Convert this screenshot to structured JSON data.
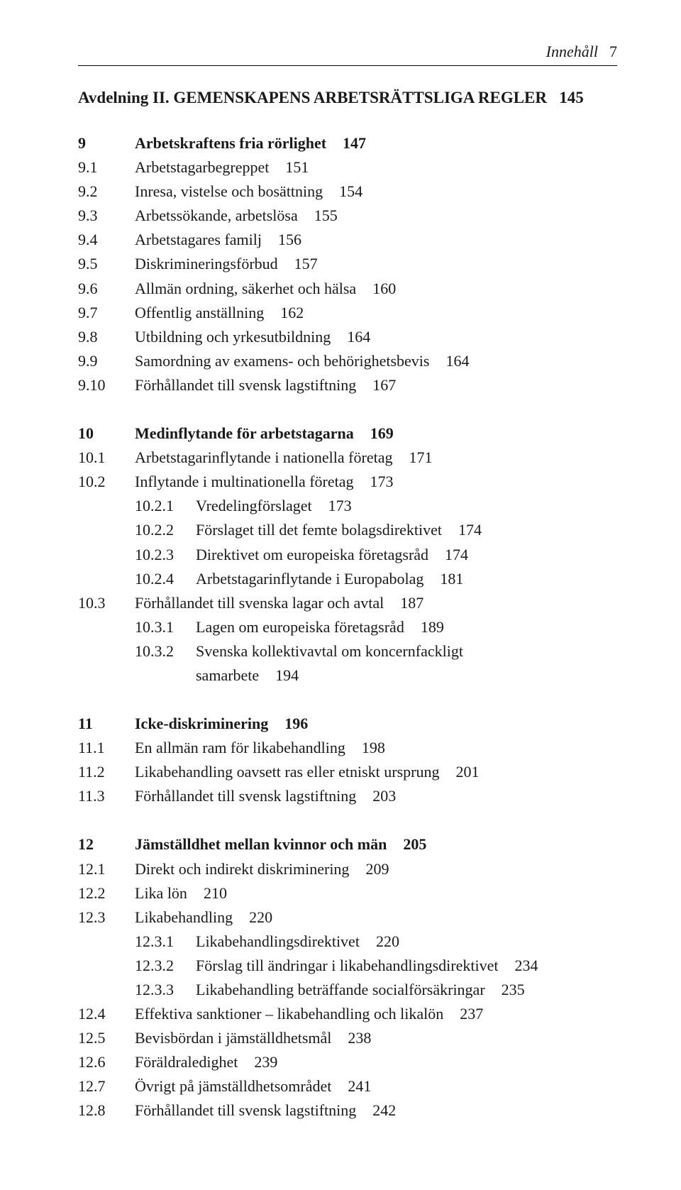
{
  "header": {
    "label": "Innehåll",
    "page": "7"
  },
  "avdelning": {
    "prefix": "Avdelning II.",
    "title": "GEMENSKAPENS ARBETSRÄTTSLIGA REGLER",
    "page": "145"
  },
  "sections": [
    {
      "head": {
        "num": "9",
        "title": "Arbetskraftens fria rörlighet",
        "page": "147"
      },
      "items": [
        {
          "num": "9.1",
          "title": "Arbetstagarbegreppet",
          "page": "151"
        },
        {
          "num": "9.2",
          "title": "Inresa, vistelse och bosättning",
          "page": "154"
        },
        {
          "num": "9.3",
          "title": "Arbetssökande, arbetslösa",
          "page": "155"
        },
        {
          "num": "9.4",
          "title": "Arbetstagares familj",
          "page": "156"
        },
        {
          "num": "9.5",
          "title": "Diskrimineringsförbud",
          "page": "157"
        },
        {
          "num": "9.6",
          "title": "Allmän ordning, säkerhet och hälsa",
          "page": "160"
        },
        {
          "num": "9.7",
          "title": "Offentlig anställning",
          "page": "162"
        },
        {
          "num": "9.8",
          "title": "Utbildning och yrkesutbildning",
          "page": "164"
        },
        {
          "num": "9.9",
          "title": "Samordning av examens- och behörighetsbevis",
          "page": "164"
        },
        {
          "num": "9.10",
          "title": "Förhållandet till svensk lagstiftning",
          "page": "167"
        }
      ]
    },
    {
      "head": {
        "num": "10",
        "title": "Medinflytande för arbetstagarna",
        "page": "169"
      },
      "items": [
        {
          "num": "10.1",
          "title": "Arbetstagarinflytande i nationella företag",
          "page": "171"
        },
        {
          "num": "10.2",
          "title": "Inflytande i multinationella företag",
          "page": "173",
          "subs": [
            {
              "num": "10.2.1",
              "title": "Vredelingförslaget",
              "page": "173"
            },
            {
              "num": "10.2.2",
              "title": "Förslaget till det femte bolagsdirektivet",
              "page": "174"
            },
            {
              "num": "10.2.3",
              "title": "Direktivet om europeiska företagsråd",
              "page": "174"
            },
            {
              "num": "10.2.4",
              "title": "Arbetstagarinflytande i Europabolag",
              "page": "181"
            }
          ]
        },
        {
          "num": "10.3",
          "title": "Förhållandet till svenska lagar och avtal",
          "page": "187",
          "subs": [
            {
              "num": "10.3.1",
              "title": "Lagen om europeiska företagsråd",
              "page": "189"
            },
            {
              "num": "10.3.2",
              "title": "Svenska kollektivavtal om koncernfackligt",
              "cont": "samarbete",
              "page": "194"
            }
          ]
        }
      ]
    },
    {
      "head": {
        "num": "11",
        "title": "Icke-diskriminering",
        "page": "196"
      },
      "items": [
        {
          "num": "11.1",
          "title": "En allmän ram för likabehandling",
          "page": "198"
        },
        {
          "num": "11.2",
          "title": "Likabehandling oavsett ras eller etniskt ursprung",
          "page": "201"
        },
        {
          "num": "11.3",
          "title": "Förhållandet till svensk lagstiftning",
          "page": "203"
        }
      ]
    },
    {
      "head": {
        "num": "12",
        "title": "Jämställdhet mellan kvinnor och män",
        "page": "205"
      },
      "items": [
        {
          "num": "12.1",
          "title": "Direkt och indirekt diskriminering",
          "page": "209"
        },
        {
          "num": "12.2",
          "title": "Lika lön",
          "page": "210"
        },
        {
          "num": "12.3",
          "title": "Likabehandling",
          "page": "220",
          "subs": [
            {
              "num": "12.3.1",
              "title": "Likabehandlingsdirektivet",
              "page": "220"
            },
            {
              "num": "12.3.2",
              "title": "Förslag till ändringar i likabehandlingsdirektivet",
              "page": "234"
            },
            {
              "num": "12.3.3",
              "title": "Likabehandling beträffande socialförsäkringar",
              "page": "235"
            }
          ]
        },
        {
          "num": "12.4",
          "title": "Effektiva sanktioner – likabehandling och likalön",
          "page": "237"
        },
        {
          "num": "12.5",
          "title": "Bevisbördan i jämställdhetsmål",
          "page": "238"
        },
        {
          "num": "12.6",
          "title": "Föräldraledighet",
          "page": "239"
        },
        {
          "num": "12.7",
          "title": "Övrigt på jämställdhetsområdet",
          "page": "241"
        },
        {
          "num": "12.8",
          "title": "Förhållandet till svensk lagstiftning",
          "page": "242"
        }
      ]
    }
  ]
}
